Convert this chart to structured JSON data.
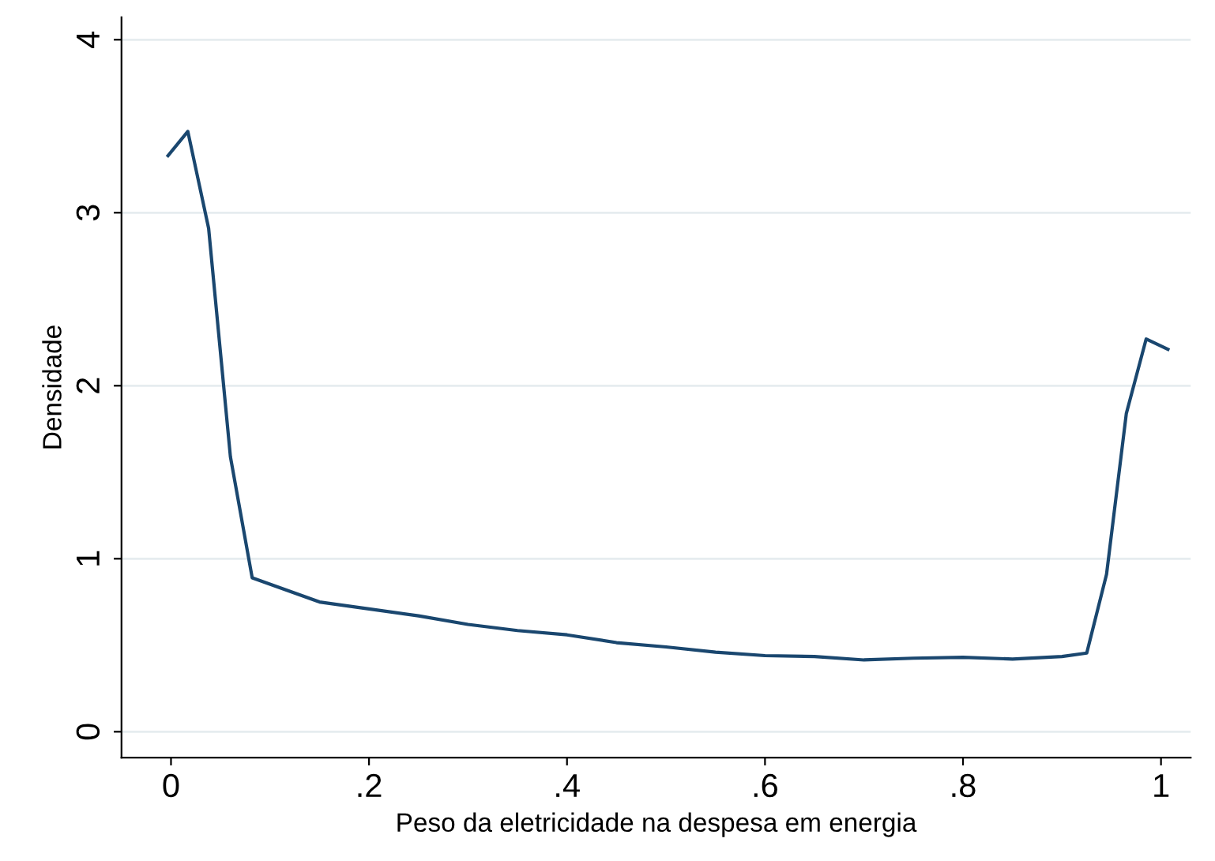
{
  "chart_data": {
    "type": "line",
    "xlabel": "Peso da eletricidade na despesa em energia",
    "ylabel": "Densidade",
    "x": [
      -0.003,
      0.017,
      0.038,
      0.06,
      0.082,
      0.15,
      0.2,
      0.25,
      0.3,
      0.35,
      0.4,
      0.45,
      0.5,
      0.55,
      0.6,
      0.65,
      0.7,
      0.75,
      0.8,
      0.85,
      0.9,
      0.925,
      0.945,
      0.965,
      0.985,
      1.007
    ],
    "series": [
      {
        "color": "#1a476f",
        "values": [
          3.33,
          3.47,
          2.91,
          1.59,
          0.89,
          0.75,
          0.71,
          0.67,
          0.62,
          0.585,
          0.56,
          0.515,
          0.49,
          0.46,
          0.44,
          0.435,
          0.415,
          0.425,
          0.43,
          0.42,
          0.435,
          0.455,
          0.91,
          1.84,
          2.27,
          2.21
        ]
      }
    ],
    "xlim": [
      -0.05,
      1.03
    ],
    "ylim": [
      -0.15,
      4.13
    ],
    "xticks": [
      0,
      {
        "value": 0.2,
        "label": ".2"
      },
      {
        "value": 0.4,
        "label": ".4"
      },
      {
        "value": 0.6,
        "label": ".6"
      },
      {
        "value": 0.8,
        "label": ".8"
      },
      1
    ],
    "yticks": [
      0,
      1,
      2,
      3,
      4
    ],
    "grid": "y",
    "legend": false,
    "marker": "none",
    "line_style": "solid"
  }
}
